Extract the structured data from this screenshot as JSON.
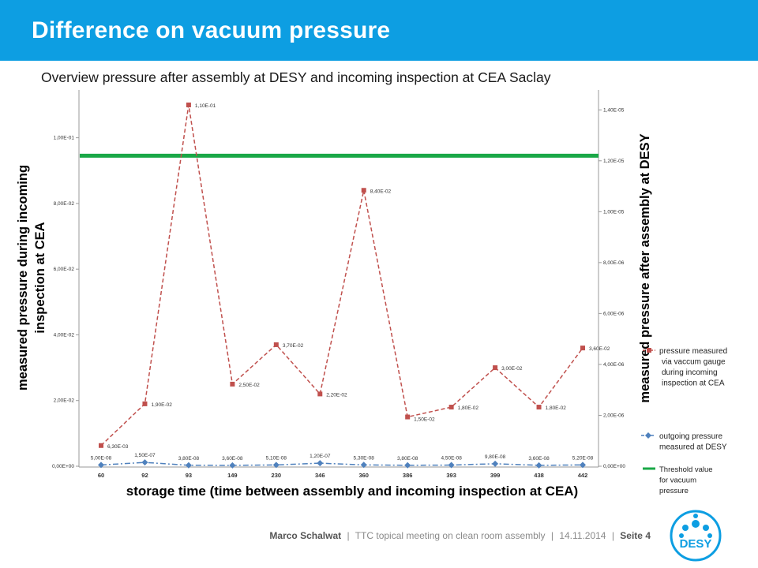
{
  "slide": {
    "title": "Difference on vacuum pressure",
    "subtitle": "Overview pressure after assembly at DESY and incoming inspection at CEA Saclay"
  },
  "footer": {
    "author": "Marco Schalwat",
    "separator": "|",
    "event": "TTC topical meeting on clean room assembly",
    "date": "14.11.2014",
    "page": "Seite 4"
  },
  "logo": {
    "text": "DESY",
    "color": "#0d9ee2"
  },
  "colors": {
    "header": "#0d9ee2",
    "cea_series": "#c0504d",
    "desy_series": "#4f81bd",
    "threshold": "#1aa847"
  },
  "chart_data": {
    "type": "line",
    "categories": [
      "60",
      "92",
      "93",
      "149",
      "230",
      "346",
      "360",
      "386",
      "393",
      "399",
      "438",
      "442"
    ],
    "xlabel": "storage time (time between assembly and incoming inspection at CEA)",
    "ylabel_left": "measured pressure during incoming inspection at CEA",
    "ylabel_right": "measured pressure after assembly at DESY",
    "ylim_left": [
      0,
      0.11
    ],
    "ylim_right": [
      0,
      1.5e-05
    ],
    "left_ticks": [
      "0,00E+00",
      "2,00E-02",
      "4,00E-02",
      "6,00E-02",
      "8,00E-02",
      "1,00E-01"
    ],
    "right_ticks": [
      "0,00E+00",
      "2,00E-06",
      "4,00E-06",
      "6,00E-06",
      "8,00E-06",
      "1,00E-05",
      "1,20E-05",
      "1,40E-05"
    ],
    "series": [
      {
        "name": "pressure measured via vaccum gauge during incoming inspection at CEA",
        "axis": "left",
        "values": [
          0.0063,
          0.019,
          0.11,
          0.025,
          0.037,
          0.022,
          0.084,
          0.015,
          0.018,
          0.03,
          0.018,
          0.036
        ],
        "labels": [
          "6,30E-03",
          "1,90E-02",
          "1,10E-01",
          "2,50E-02",
          "3,70E-02",
          "2,20E-02",
          "8,40E-02",
          "1,50E-02",
          "1,80E-02",
          "3,00E-02",
          "1,80E-02",
          "3,60E-02"
        ],
        "style": "dashed",
        "marker": "square"
      },
      {
        "name": "outgoing pressure measured at DESY",
        "axis": "right",
        "values": [
          5e-08,
          1.5e-07,
          3.8e-08,
          3.6e-08,
          5.1e-08,
          1.2e-07,
          5.3e-08,
          3.8e-08,
          4.5e-08,
          9.8e-08,
          3.6e-08,
          5.2e-08
        ],
        "labels": [
          "5,00E-08",
          "1,50E-07",
          "3,80E-08",
          "3,60E-08",
          "5,10E-08",
          "1,20E-07",
          "5,30E-08",
          "3,80E-08",
          "4,50E-08",
          "9,80E-08",
          "3,60E-08",
          "5,20E-08"
        ],
        "style": "dash-dot",
        "marker": "diamond"
      }
    ],
    "threshold": {
      "name": "Threshold value for vacuum pressure",
      "axis": "right",
      "value": 1.22e-05
    },
    "legend": [
      [
        "pressure measured",
        "via vaccum gauge",
        "during incoming",
        "inspection at CEA"
      ],
      [
        "outgoing pressure",
        "measured at DESY"
      ],
      [
        "Threshold  value",
        "for vacuum",
        "pressure"
      ]
    ],
    "legend_position": "bottom-right",
    "grid": false
  }
}
